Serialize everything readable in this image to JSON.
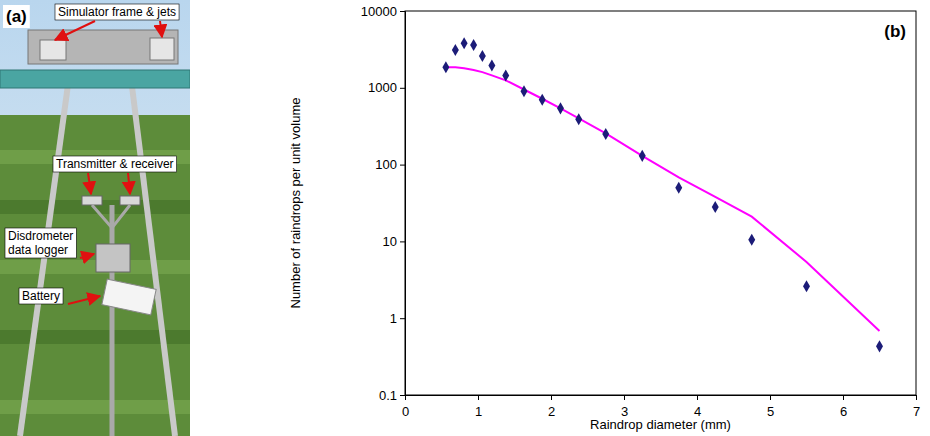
{
  "panel_a": {
    "label": "(a)",
    "annotations": [
      "Simulator frame & jets",
      "Transmitter & receiver",
      "Disdrometer data logger",
      "Battery"
    ]
  },
  "chart_data": {
    "type": "scatter",
    "annotations": [
      "(b)"
    ],
    "x_label": "Raindrop diameter (mm)",
    "y_label": "Number of raindrops per unit volume",
    "x": [
      0.56,
      0.69,
      0.81,
      0.94,
      1.06,
      1.19,
      1.38,
      1.63,
      1.88,
      2.13,
      2.38,
      2.75,
      3.25,
      3.75,
      4.25,
      4.75,
      5.5,
      6.5
    ],
    "series": [
      {
        "type": "scatter",
        "marker": "diamond",
        "color": "#1c1c78",
        "values": [
          1850,
          3100,
          3800,
          3600,
          2600,
          1950,
          1450,
          900,
          700,
          540,
          390,
          250,
          130,
          50,
          28,
          10.5,
          2.6,
          0.43
        ]
      },
      {
        "type": "line",
        "line_style": "solid",
        "color": "#ff00ff",
        "values": [
          1850,
          1850,
          1800,
          1700,
          1600,
          1450,
          1250,
          950,
          720,
          540,
          400,
          255,
          130,
          68,
          38,
          21,
          5.4,
          0.68
        ]
      }
    ],
    "xlim": [
      0,
      7
    ],
    "xticks": [
      0,
      1,
      2,
      3,
      4,
      5,
      6,
      7
    ],
    "ylim": [
      0.1,
      10000
    ],
    "yticks": [
      0.1,
      1,
      10,
      100,
      1000,
      10000
    ],
    "log": "y",
    "grid": false
  }
}
